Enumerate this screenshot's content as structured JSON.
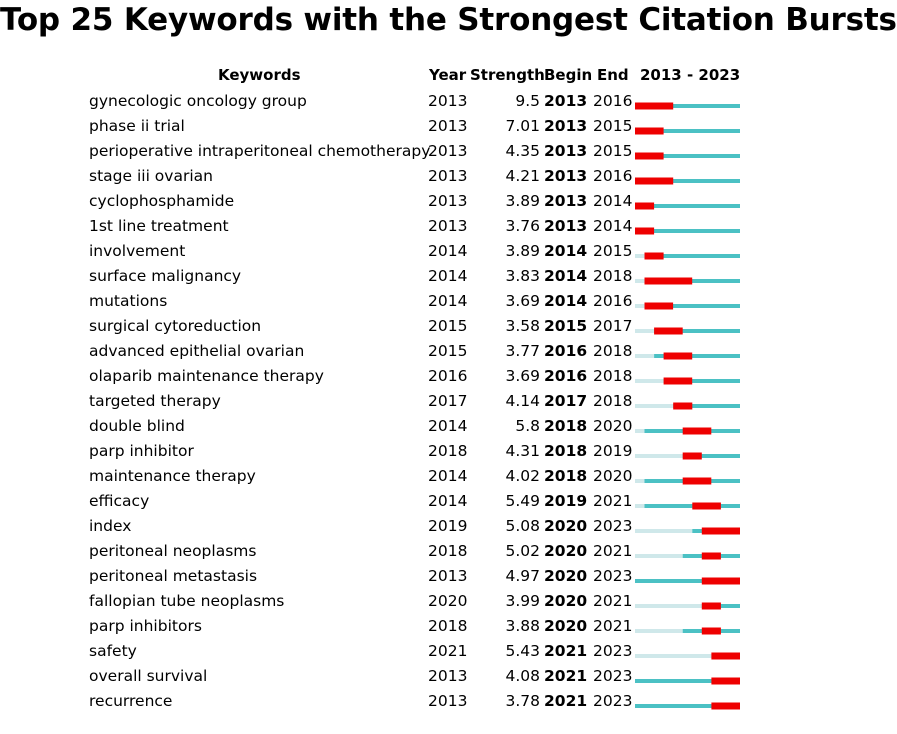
{
  "title": "Top 25 Keywords with the Strongest Citation Bursts",
  "headers": {
    "keywords": "Keywords",
    "year": "Year",
    "strength": "Strength",
    "begin": "Begin",
    "end": "End",
    "range": "2013 - 2023"
  },
  "colors": {
    "active": "#4bc1c4",
    "inactive": "#cfe8ea",
    "burst": "#ee0000"
  },
  "chart_data": {
    "type": "table",
    "timeline_start": 2013,
    "timeline_end": 2023,
    "columns": [
      "Keywords",
      "Year",
      "Strength",
      "Begin",
      "End"
    ],
    "rows": [
      {
        "keyword": "gynecologic oncology group",
        "year": "2013",
        "strength": "9.5",
        "begin": "2013",
        "end": "2016"
      },
      {
        "keyword": "phase ii trial",
        "year": "2013",
        "strength": "7.01",
        "begin": "2013",
        "end": "2015"
      },
      {
        "keyword": "perioperative intraperitoneal chemotherapy",
        "year": "2013",
        "strength": "4.35",
        "begin": "2013",
        "end": "2015"
      },
      {
        "keyword": "stage iii ovarian",
        "year": "2013",
        "strength": "4.21",
        "begin": "2013",
        "end": "2016"
      },
      {
        "keyword": "cyclophosphamide",
        "year": "2013",
        "strength": "3.89",
        "begin": "2013",
        "end": "2014"
      },
      {
        "keyword": "1st line treatment",
        "year": "2013",
        "strength": "3.76",
        "begin": "2013",
        "end": "2014"
      },
      {
        "keyword": "involvement",
        "year": "2014",
        "strength": "3.89",
        "begin": "2014",
        "end": "2015"
      },
      {
        "keyword": "surface malignancy",
        "year": "2014",
        "strength": "3.83",
        "begin": "2014",
        "end": "2018"
      },
      {
        "keyword": "mutations",
        "year": "2014",
        "strength": "3.69",
        "begin": "2014",
        "end": "2016"
      },
      {
        "keyword": "surgical cytoreduction",
        "year": "2015",
        "strength": "3.58",
        "begin": "2015",
        "end": "2017"
      },
      {
        "keyword": "advanced epithelial ovarian",
        "year": "2015",
        "strength": "3.77",
        "begin": "2016",
        "end": "2018"
      },
      {
        "keyword": "olaparib maintenance therapy",
        "year": "2016",
        "strength": "3.69",
        "begin": "2016",
        "end": "2018"
      },
      {
        "keyword": "targeted therapy",
        "year": "2017",
        "strength": "4.14",
        "begin": "2017",
        "end": "2018"
      },
      {
        "keyword": "double blind",
        "year": "2014",
        "strength": "5.8",
        "begin": "2018",
        "end": "2020"
      },
      {
        "keyword": "parp inhibitor",
        "year": "2018",
        "strength": "4.31",
        "begin": "2018",
        "end": "2019"
      },
      {
        "keyword": "maintenance therapy",
        "year": "2014",
        "strength": "4.02",
        "begin": "2018",
        "end": "2020"
      },
      {
        "keyword": "efficacy",
        "year": "2014",
        "strength": "5.49",
        "begin": "2019",
        "end": "2021"
      },
      {
        "keyword": "index",
        "year": "2019",
        "strength": "5.08",
        "begin": "2020",
        "end": "2023"
      },
      {
        "keyword": "peritoneal neoplasms",
        "year": "2018",
        "strength": "5.02",
        "begin": "2020",
        "end": "2021"
      },
      {
        "keyword": "peritoneal metastasis",
        "year": "2013",
        "strength": "4.97",
        "begin": "2020",
        "end": "2023"
      },
      {
        "keyword": "fallopian tube neoplasms",
        "year": "2020",
        "strength": "3.99",
        "begin": "2020",
        "end": "2021"
      },
      {
        "keyword": "parp inhibitors",
        "year": "2018",
        "strength": "3.88",
        "begin": "2020",
        "end": "2021"
      },
      {
        "keyword": "safety",
        "year": "2021",
        "strength": "5.43",
        "begin": "2021",
        "end": "2023"
      },
      {
        "keyword": "overall survival",
        "year": "2013",
        "strength": "4.08",
        "begin": "2021",
        "end": "2023"
      },
      {
        "keyword": "recurrence",
        "year": "2013",
        "strength": "3.78",
        "begin": "2021",
        "end": "2023"
      }
    ]
  }
}
